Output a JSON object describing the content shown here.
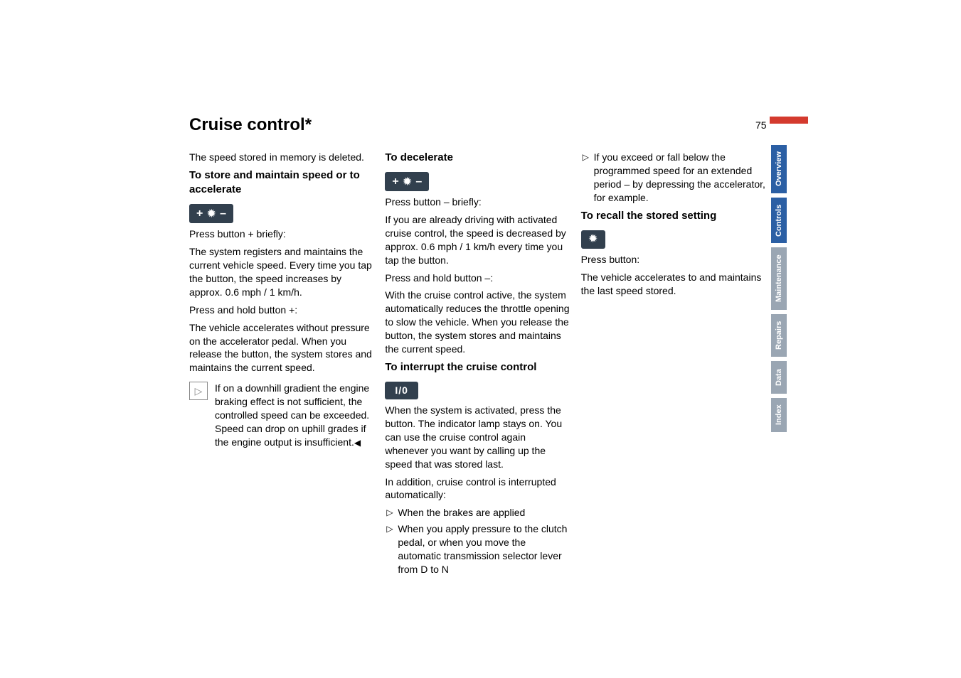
{
  "page": {
    "title": "Cruise control*",
    "number": "75"
  },
  "col1": {
    "intro": "The speed stored in memory is deleted.",
    "h_store": "To store and maintain speed or to accelerate",
    "press_plus": "Press button + briefly:",
    "p1": "The system registers and maintains the current vehicle speed. Every time you tap the button, the speed increases by approx. 0.6 mph / 1 km/h.",
    "hold_plus": "Press and hold button +:",
    "p2": "The vehicle accelerates without pressure on the accelerator pedal. When you release the button, the system stores and maintains the current speed.",
    "note": "If on a downhill gradient the engine braking effect is not sufficient, the controlled speed can be exceeded. Speed can drop on uphill grades if the engine output is insufficient."
  },
  "col2": {
    "h_decel": "To decelerate",
    "press_minus": "Press button – briefly:",
    "p1": "If you are already driving with activated cruise control, the speed is decreased by approx. 0.6 mph / 1 km/h every time you tap the button.",
    "hold_minus": "Press and hold button –:",
    "p2": "With the cruise control active, the system automatically reduces the throttle opening to slow the vehicle. When you release the button, the system stores and maintains the current speed.",
    "h_interrupt": "To interrupt the cruise control",
    "io_label": "I/0",
    "p3": "When the system is activated, press the button. The indicator lamp stays on. You can use the cruise control again whenever you want by calling up the speed that was stored last.",
    "p4": "In addition, cruise control is interrupted automatically:",
    "b1": "When the brakes are applied",
    "b2": "When you apply pressure to the clutch pedal, or when you move the automatic transmission selector lever from D to N"
  },
  "col3": {
    "b3": "If you exceed or fall below the programmed speed for an extended period – by depressing the accelerator, for example.",
    "h_recall": "To recall the stored setting",
    "press": "Press button:",
    "p1": "The vehicle accelerates to and maintains the last speed stored."
  },
  "icons": {
    "plus": "+",
    "minus": "–",
    "cruise_glyph": "✹",
    "resume_glyph": "✹",
    "note_triangle": "▷",
    "end_mark": "◀",
    "bullet": "▷"
  },
  "tabs": {
    "overview": "Overview",
    "controls": "Controls",
    "maintenance": "Maintenance",
    "repairs": "Repairs",
    "data": "Data",
    "index": "Index"
  },
  "colors": {
    "tab_active": "#2b5fa4",
    "tab_inactive": "#9aa6b3",
    "icon_bg": "#32404e",
    "notch": "#d43a2e"
  }
}
